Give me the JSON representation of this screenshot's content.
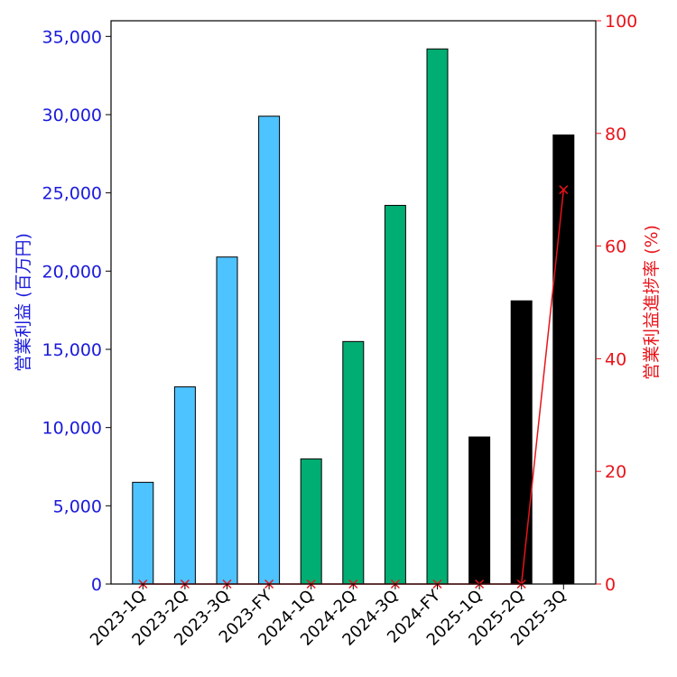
{
  "chart_data": {
    "type": "bar",
    "categories": [
      "2023-1Q",
      "2023-2Q",
      "2023-3Q",
      "2023-FY",
      "2024-1Q",
      "2024-2Q",
      "2024-3Q",
      "2024-FY",
      "2025-1Q",
      "2025-2Q",
      "2025-3Q"
    ],
    "series": [
      {
        "axis": "left",
        "values": [
          6500,
          12600,
          20900,
          29900,
          8000,
          15500,
          24200,
          34200,
          9400,
          18100,
          28700
        ],
        "colors": [
          "#4dc3ff",
          "#4dc3ff",
          "#4dc3ff",
          "#4dc3ff",
          "#00ad72",
          "#00ad72",
          "#00ad72",
          "#00ad72",
          "#000000",
          "#000000",
          "#000000"
        ]
      },
      {
        "type": "line",
        "axis": "right",
        "marker": "x",
        "color": "#e8141a",
        "values": [
          0,
          0,
          0,
          0,
          0,
          0,
          0,
          0,
          0,
          0,
          70
        ]
      }
    ],
    "ylabel": "営業利益 (百万円)",
    "ylabel_right": "営業利益進捗率 (%)",
    "ylim": [
      0,
      36000
    ],
    "ylim_right": [
      0,
      100
    ],
    "yticks": [
      "0",
      "5,000",
      "10,000",
      "15,000",
      "20,000",
      "25,000",
      "30,000",
      "35,000"
    ],
    "yticks_right": [
      "0",
      "20",
      "40",
      "60",
      "80",
      "100"
    ],
    "grid": false,
    "legend": "none"
  },
  "colors": {
    "left_axis": "#1a1adb",
    "right_axis": "#e8141a"
  }
}
